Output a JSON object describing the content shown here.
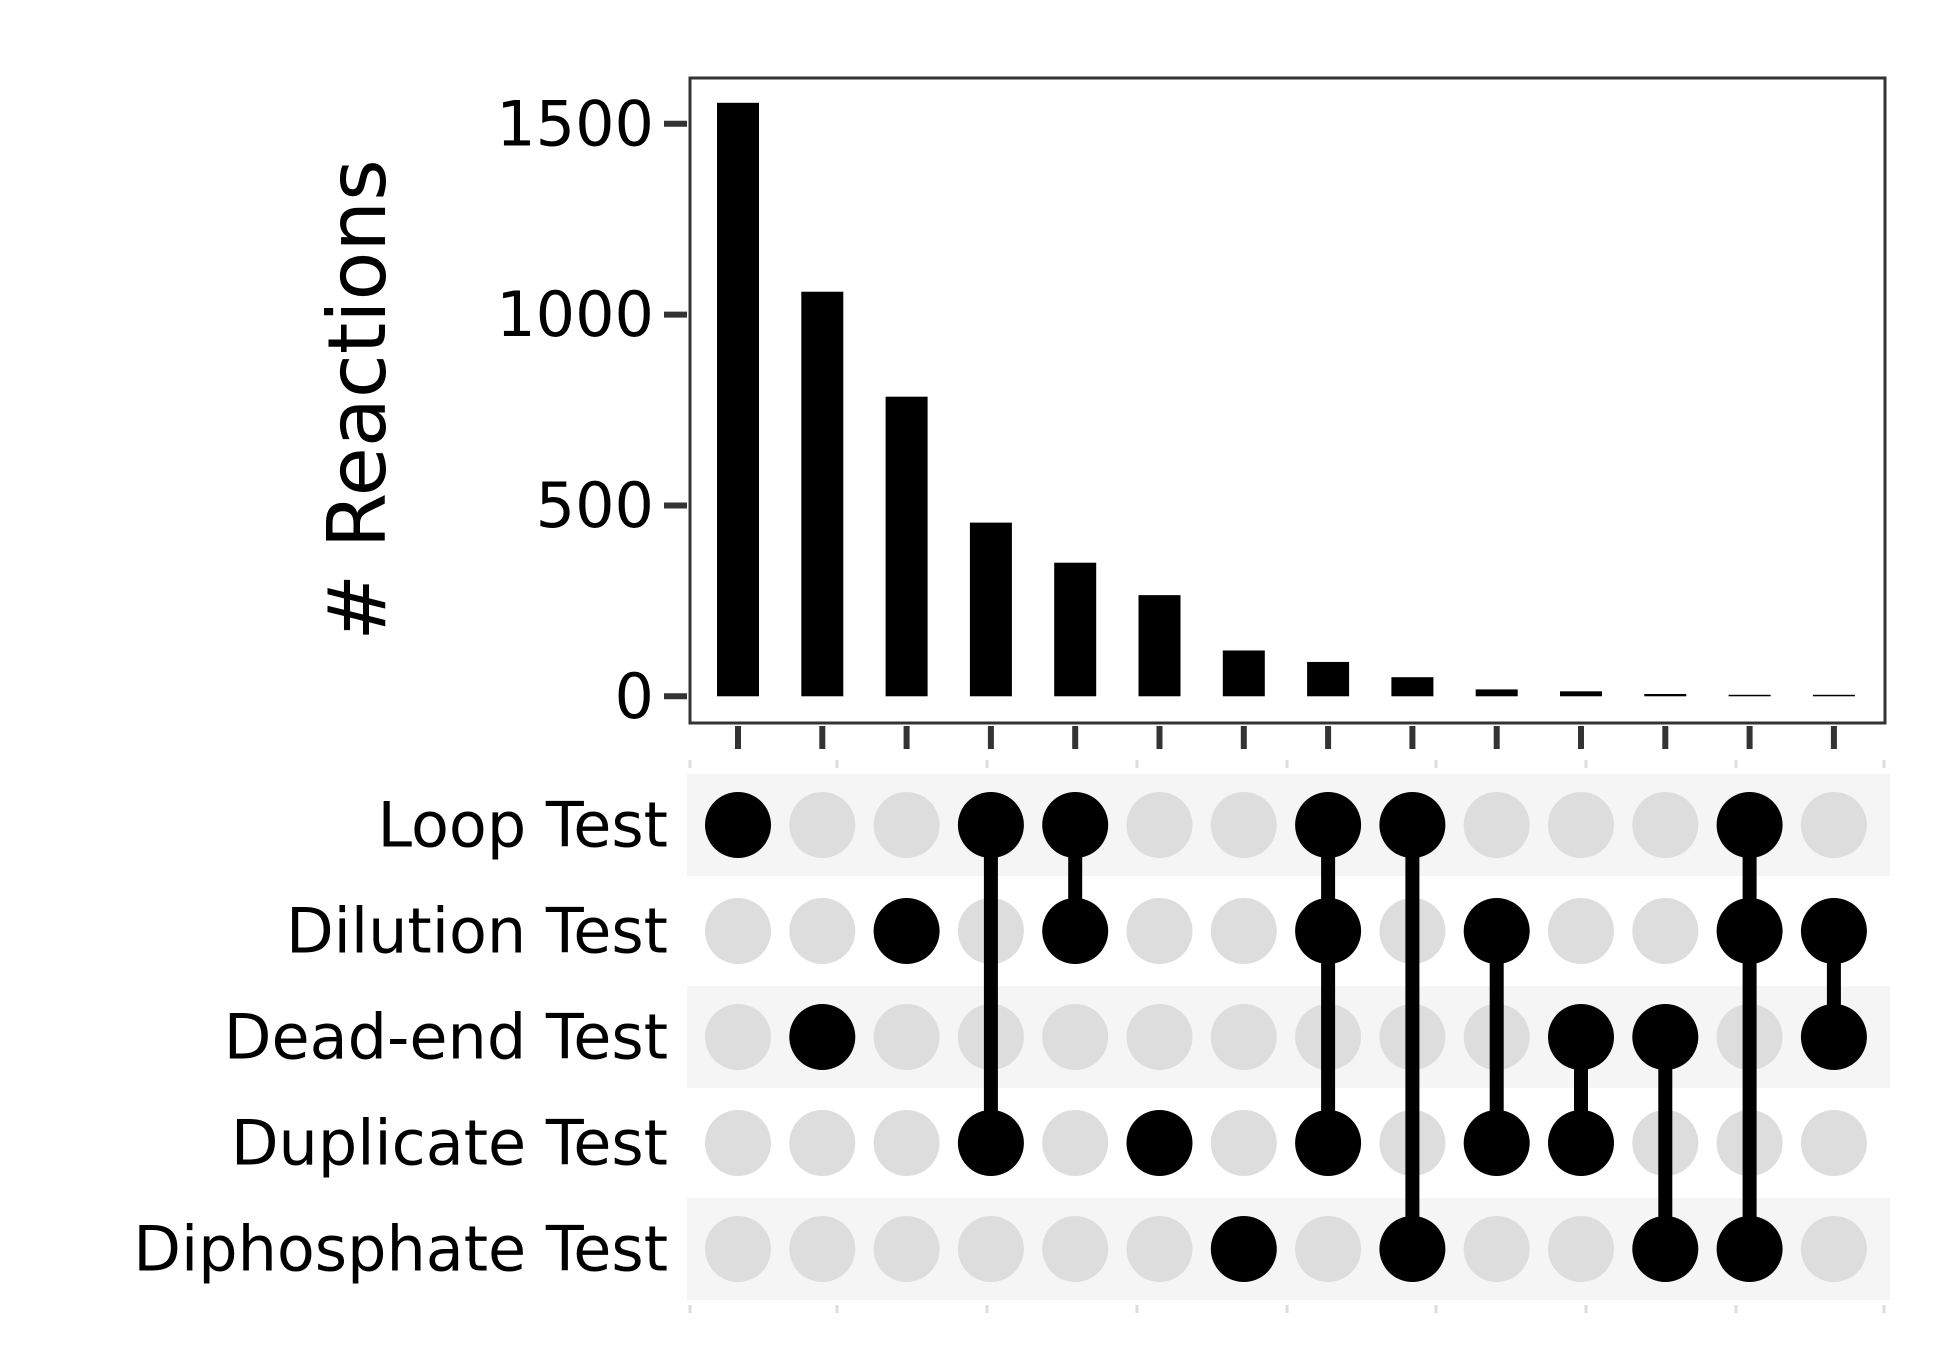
{
  "chart_data": {
    "type": "bar",
    "chart_subtype": "upset",
    "ylabel": "# Reactions",
    "ylim": [
      -70,
      1620
    ],
    "yticks": [
      0,
      500,
      1000,
      1500
    ],
    "ytick_labels": [
      "0",
      "500",
      "1000",
      "1500"
    ],
    "sets": [
      "Loop Test",
      "Dilution Test",
      "Dead-end Test",
      "Duplicate Test",
      "Diphosphate Test"
    ],
    "intersections": [
      {
        "members": [
          0
        ],
        "value": 1555
      },
      {
        "members": [
          2
        ],
        "value": 1060
      },
      {
        "members": [
          1
        ],
        "value": 785
      },
      {
        "members": [
          0,
          3
        ],
        "value": 455
      },
      {
        "members": [
          0,
          1
        ],
        "value": 350
      },
      {
        "members": [
          3
        ],
        "value": 265
      },
      {
        "members": [
          4
        ],
        "value": 120
      },
      {
        "members": [
          0,
          1,
          3
        ],
        "value": 90
      },
      {
        "members": [
          0,
          4
        ],
        "value": 50
      },
      {
        "members": [
          1,
          3
        ],
        "value": 18
      },
      {
        "members": [
          2,
          3
        ],
        "value": 13
      },
      {
        "members": [
          2,
          4
        ],
        "value": 6
      },
      {
        "members": [
          0,
          1,
          4
        ],
        "value": 2
      },
      {
        "members": [
          1,
          2
        ],
        "value": 1
      }
    ],
    "grid": false,
    "legend": "none",
    "colors": {
      "bar": "#000000",
      "dot_active": "#000000",
      "dot_inactive": "#dddddd",
      "row_shade": "#f5f5f5",
      "axis": "#333333"
    }
  }
}
